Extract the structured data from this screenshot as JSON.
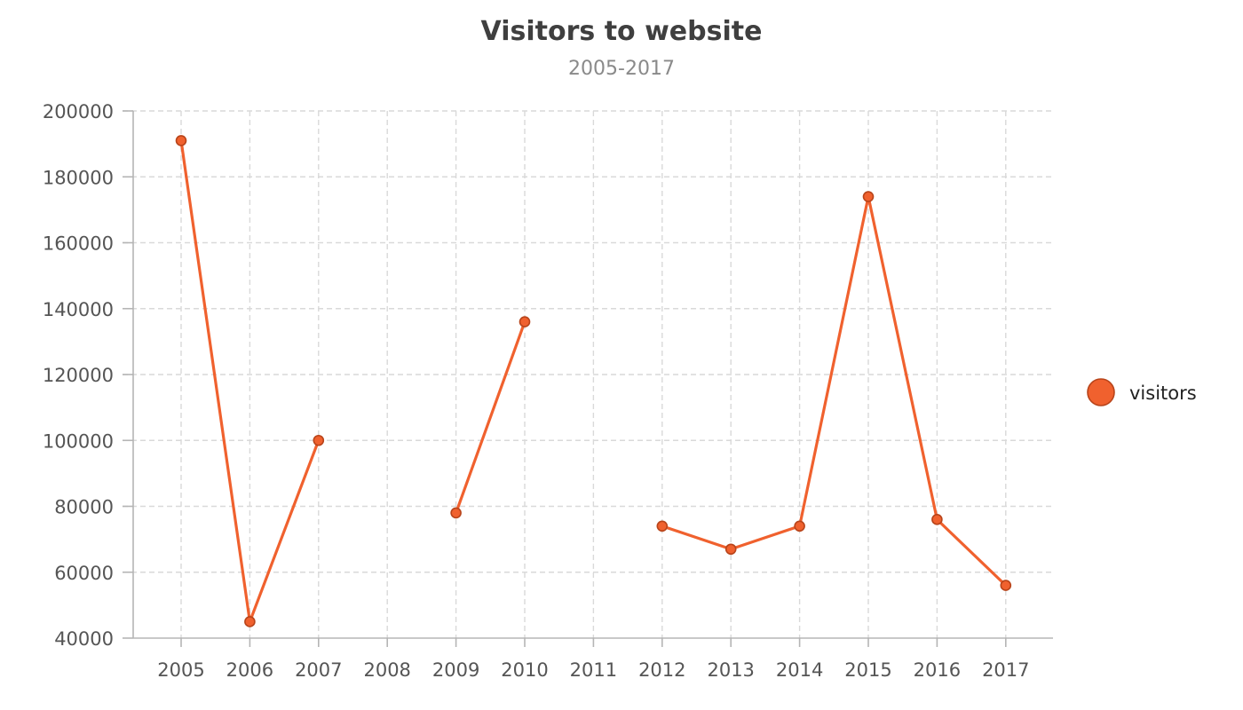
{
  "chart_data": {
    "type": "line",
    "title": "Visitors to website",
    "subtitle": "2005-2017",
    "xlabel": "",
    "ylabel": "",
    "categories": [
      "2005",
      "2006",
      "2007",
      "2008",
      "2009",
      "2010",
      "2011",
      "2012",
      "2013",
      "2014",
      "2015",
      "2016",
      "2017"
    ],
    "series": [
      {
        "name": "visitors",
        "color": "#f0612e",
        "stroke_color": "#b8441a",
        "values": [
          191000,
          45000,
          100000,
          null,
          78000,
          136000,
          null,
          74000,
          67000,
          74000,
          174000,
          76000,
          56000
        ]
      }
    ],
    "ylim": [
      40000,
      200000
    ],
    "yticks": [
      "40000",
      "60000",
      "80000",
      "100000",
      "120000",
      "140000",
      "160000",
      "180000",
      "200000"
    ],
    "ytick_values": [
      40000,
      60000,
      80000,
      100000,
      120000,
      140000,
      160000,
      180000,
      200000
    ],
    "grid": true,
    "legend": {
      "position": "right",
      "entries": [
        "visitors"
      ]
    }
  }
}
